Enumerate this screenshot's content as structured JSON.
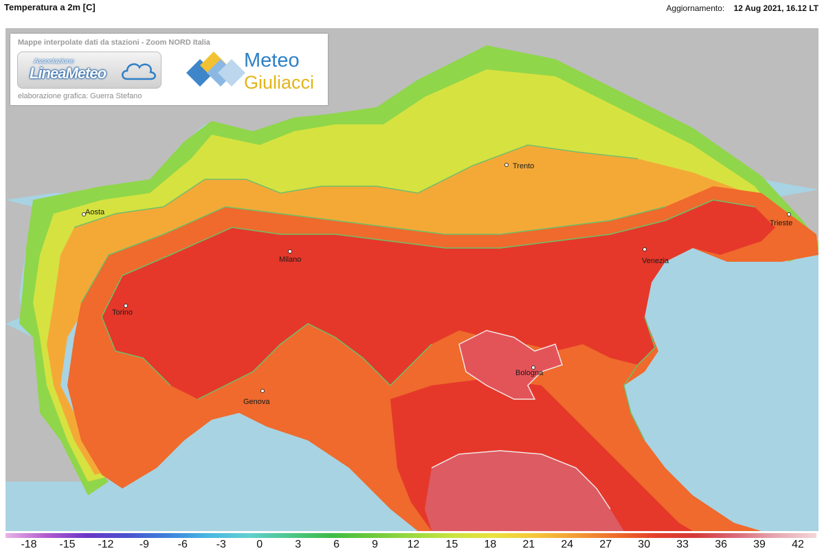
{
  "title": "Temperatura a 2m [C]",
  "update": {
    "label": "Aggiornamento:",
    "value": "12 Aug 2021, 16.12 LT"
  },
  "logo": {
    "caption": "Mappe interpolate dati da stazioni - Zoom NORD Italia",
    "association_label": "Associazione",
    "linea_meteo": "LineaMeteo",
    "credit": "elaborazione grafica: Guerra Stefano",
    "meteo": "Meteo",
    "giuliacci": "Giuliacci"
  },
  "cities": [
    "Aosta",
    "Torino",
    "Milano",
    "Trento",
    "Venezia",
    "Trieste",
    "Genova",
    "Bologna"
  ],
  "colors": {
    "sea": "#a8d3e3",
    "outside_land": "#bdbdbd",
    "t_16_20": "#8fd64a",
    "t_20_24": "#d6e240",
    "t_24_28": "#f4a937",
    "t_28_32": "#ef6a2c",
    "t_32_36": "#e5382a",
    "t_above_36": "#dd5b62",
    "isoline": "#6fbf6a",
    "isoline_hot": "#f3e6e6"
  },
  "colorbar": {
    "ticks": [
      "-18",
      "-15",
      "-12",
      "-9",
      "-6",
      "-3",
      "0",
      "3",
      "6",
      "9",
      "12",
      "15",
      "18",
      "21",
      "24",
      "27",
      "30",
      "33",
      "36",
      "39",
      "42"
    ],
    "stops": [
      "#e9b4e6",
      "#b35ccf",
      "#6a36c7",
      "#4a52cf",
      "#3d82da",
      "#46b8e3",
      "#62cfcf",
      "#4dc78c",
      "#3dbb48",
      "#6bc93b",
      "#9ad941",
      "#c8e33f",
      "#eae23c",
      "#f5c83a",
      "#f39f35",
      "#ef6f2d",
      "#e5402a",
      "#d53a38",
      "#da6a78",
      "#e7a7b1",
      "#f2d6d9"
    ]
  }
}
